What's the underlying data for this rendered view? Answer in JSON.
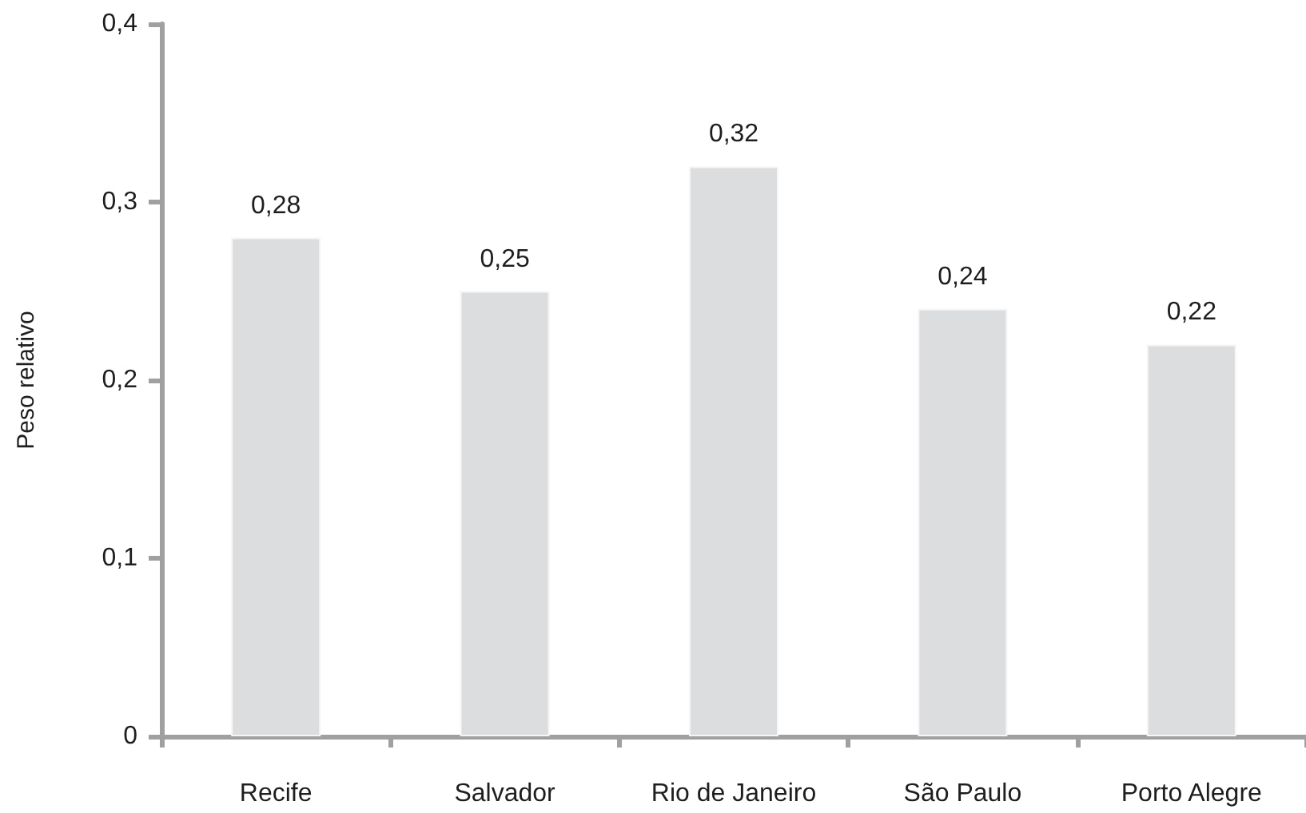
{
  "chart_data": {
    "type": "bar",
    "ylabel": "Peso relativo",
    "categories": [
      "Recife",
      "Salvador",
      "Rio de Janeiro",
      "São Paulo",
      "Porto Alegre"
    ],
    "values": [
      0.28,
      0.25,
      0.32,
      0.24,
      0.22
    ],
    "color": "#dcdddf",
    "value_labels": [
      "0,28",
      "0,25",
      "0,32",
      "0,24",
      "0,22"
    ],
    "ylim": [
      0,
      0.4
    ],
    "yticks": [
      {
        "value": 0,
        "label": "0"
      },
      {
        "value": 0.1,
        "label": "0,1"
      },
      {
        "value": 0.2,
        "label": "0,2"
      },
      {
        "value": 0.3,
        "label": "0,3"
      },
      {
        "value": 0.4,
        "label": "0,4"
      }
    ],
    "grid": false
  }
}
